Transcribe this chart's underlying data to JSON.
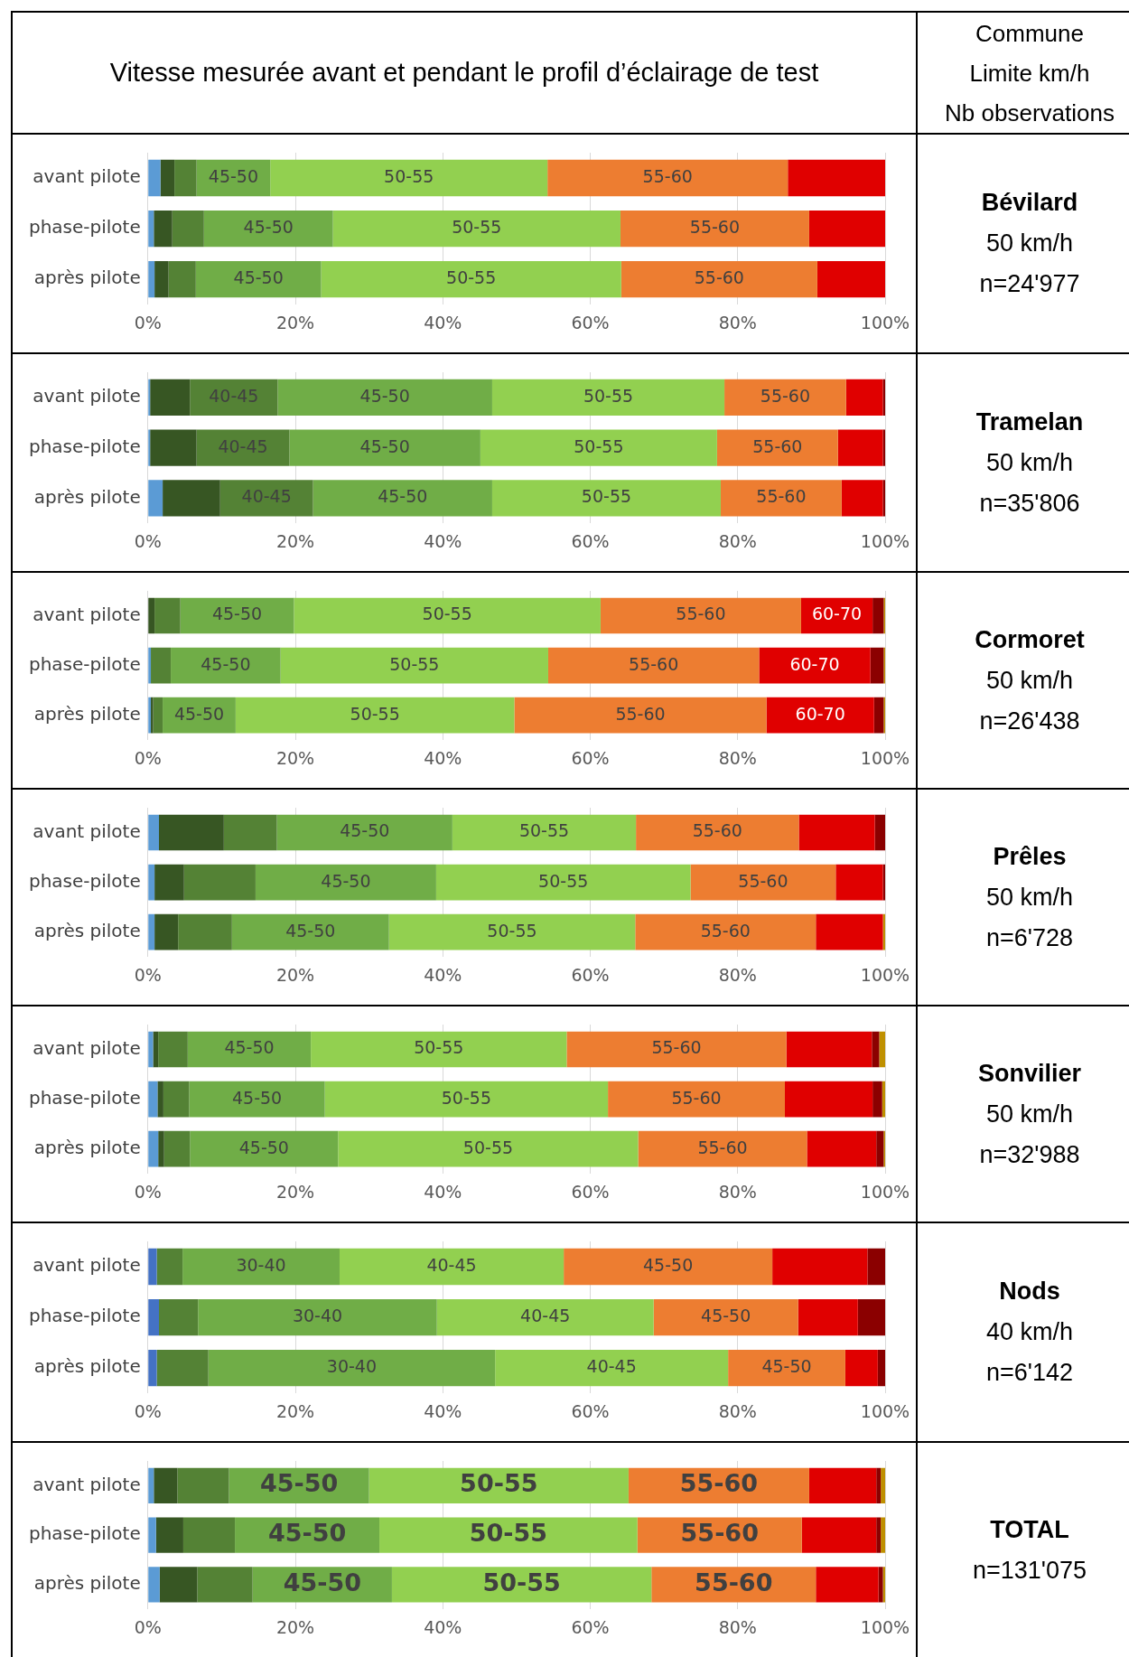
{
  "chart_data": [
    {
      "type": "other",
      "title": "Vitesse mesurée avant et pendant le profil d’éclairage de test",
      "annotations": [
        "Commune",
        "Limite km/h",
        "Nb observations"
      ]
    },
    {
      "type": "bar",
      "orientation": "horizontal",
      "stacked": true,
      "grid": "x",
      "annotations": [
        "Bévilard",
        "50 km/h",
        "n=24'977"
      ],
      "categories": [
        "avant pilote",
        "phase-pilote",
        "après pilote"
      ],
      "xlim": [
        0,
        100
      ],
      "xticks": [
        {
          "value": 0,
          "label": "0%"
        },
        {
          "value": 20,
          "label": "20%"
        },
        {
          "value": 40,
          "label": "40%"
        },
        {
          "value": 60,
          "label": "60%"
        },
        {
          "value": 80,
          "label": "80%"
        },
        {
          "value": 100,
          "label": "100%"
        }
      ],
      "series": [
        {
          "color": "#5b9bd5",
          "values": [
            1.7,
            0.8,
            0.9
          ]
        },
        {
          "color": "#375623",
          "values": [
            1.9,
            2.5,
            1.9
          ]
        },
        {
          "color": "#548235",
          "values": [
            3.0,
            4.3,
            3.7
          ]
        },
        {
          "name": "45-50",
          "color": "#70ad47",
          "values": [
            10.0,
            17.5,
            17.0
          ]
        },
        {
          "name": "50-55",
          "color": "#92d050",
          "values": [
            37.6,
            39.0,
            40.7
          ]
        },
        {
          "name": "55-60",
          "color": "#ed7d31",
          "values": [
            32.6,
            25.6,
            26.6
          ]
        },
        {
          "color": "#e00000",
          "values": [
            13.2,
            10.3,
            9.2
          ]
        }
      ]
    },
    {
      "type": "bar",
      "orientation": "horizontal",
      "stacked": true,
      "grid": "x",
      "annotations": [
        "Tramelan",
        "50 km/h",
        "n=35'806"
      ],
      "categories": [
        "avant pilote",
        "phase-pilote",
        "après pilote"
      ],
      "xlim": [
        0,
        100
      ],
      "xticks": [
        {
          "value": 0,
          "label": "0%"
        },
        {
          "value": 20,
          "label": "20%"
        },
        {
          "value": 40,
          "label": "40%"
        },
        {
          "value": 60,
          "label": "60%"
        },
        {
          "value": 80,
          "label": "80%"
        },
        {
          "value": 100,
          "label": "100%"
        }
      ],
      "series": [
        {
          "color": "#5b9bd5",
          "values": [
            0.3,
            0.3,
            2.0
          ]
        },
        {
          "color": "#375623",
          "values": [
            5.4,
            6.3,
            7.8
          ]
        },
        {
          "name": "40-45",
          "color": "#548235",
          "values": [
            11.9,
            12.6,
            12.6
          ]
        },
        {
          "name": "45-50",
          "color": "#70ad47",
          "values": [
            29.1,
            25.9,
            24.3
          ]
        },
        {
          "name": "50-55",
          "color": "#92d050",
          "values": [
            31.5,
            32.1,
            31.0
          ]
        },
        {
          "name": "55-60",
          "color": "#ed7d31",
          "values": [
            16.5,
            16.4,
            16.4
          ]
        },
        {
          "color": "#e00000",
          "values": [
            5.0,
            6.1,
            5.6
          ]
        },
        {
          "color": "#8b0000",
          "values": [
            0.3,
            0.3,
            0.3
          ]
        }
      ]
    },
    {
      "type": "bar",
      "orientation": "horizontal",
      "stacked": true,
      "grid": "x",
      "annotations": [
        "Cormoret",
        "50 km/h",
        "n=26'438"
      ],
      "categories": [
        "avant pilote",
        "phase-pilote",
        "après pilote"
      ],
      "xlim": [
        0,
        100
      ],
      "xticks": [
        {
          "value": 0,
          "label": "0%"
        },
        {
          "value": 20,
          "label": "20%"
        },
        {
          "value": 40,
          "label": "40%"
        },
        {
          "value": 60,
          "label": "60%"
        },
        {
          "value": 80,
          "label": "80%"
        },
        {
          "value": 100,
          "label": "100%"
        }
      ],
      "series": [
        {
          "color": "#5b9bd5",
          "values": [
            0,
            0.4,
            0.4
          ]
        },
        {
          "color": "#375623",
          "values": [
            0.9,
            0,
            0.3
          ]
        },
        {
          "color": "#548235",
          "values": [
            3.5,
            2.7,
            1.3
          ]
        },
        {
          "name": "45-50",
          "color": "#70ad47",
          "values": [
            15.4,
            14.9,
            9.9
          ]
        },
        {
          "name": "50-55",
          "color": "#92d050",
          "values": [
            41.6,
            36.3,
            37.8
          ]
        },
        {
          "name": "55-60",
          "color": "#ed7d31",
          "values": [
            27.2,
            28.6,
            34.2
          ]
        },
        {
          "name": "60-70",
          "color": "#e00000",
          "values": [
            9.7,
            15.1,
            14.6
          ]
        },
        {
          "color": "#8b0000",
          "values": [
            1.5,
            1.8,
            1.3
          ]
        },
        {
          "color": "#bf9000",
          "values": [
            0.2,
            0.2,
            0.2
          ]
        }
      ]
    },
    {
      "type": "bar",
      "orientation": "horizontal",
      "stacked": true,
      "grid": "x",
      "annotations": [
        "Prêles",
        "50 km/h",
        "n=6'728"
      ],
      "categories": [
        "avant pilote",
        "phase-pilote",
        "après pilote"
      ],
      "xlim": [
        0,
        100
      ],
      "xticks": [
        {
          "value": 0,
          "label": "0%"
        },
        {
          "value": 20,
          "label": "20%"
        },
        {
          "value": 40,
          "label": "40%"
        },
        {
          "value": 60,
          "label": "60%"
        },
        {
          "value": 80,
          "label": "80%"
        },
        {
          "value": 100,
          "label": "100%"
        }
      ],
      "series": [
        {
          "color": "#5b9bd5",
          "values": [
            1.5,
            0.9,
            0.9
          ]
        },
        {
          "color": "#375623",
          "values": [
            8.8,
            4.0,
            3.2
          ]
        },
        {
          "color": "#548235",
          "values": [
            7.2,
            9.7,
            7.3
          ]
        },
        {
          "name": "45-50",
          "color": "#70ad47",
          "values": [
            23.8,
            24.5,
            21.3
          ]
        },
        {
          "name": "50-55",
          "color": "#92d050",
          "values": [
            24.9,
            34.5,
            33.4
          ]
        },
        {
          "name": "55-60",
          "color": "#ed7d31",
          "values": [
            22.1,
            19.7,
            24.5
          ]
        },
        {
          "color": "#e00000",
          "values": [
            10.3,
            6.4,
            9.1
          ]
        },
        {
          "color": "#8b0000",
          "values": [
            1.4,
            0.3,
            0
          ]
        },
        {
          "color": "#bf9000",
          "values": [
            0,
            0,
            0.3
          ]
        }
      ]
    },
    {
      "type": "bar",
      "orientation": "horizontal",
      "stacked": true,
      "grid": "x",
      "annotations": [
        "Sonvilier",
        "50 km/h",
        "n=32'988"
      ],
      "categories": [
        "avant pilote",
        "phase-pilote",
        "après pilote"
      ],
      "xlim": [
        0,
        100
      ],
      "xticks": [
        {
          "value": 0,
          "label": "0%"
        },
        {
          "value": 20,
          "label": "20%"
        },
        {
          "value": 40,
          "label": "40%"
        },
        {
          "value": 60,
          "label": "60%"
        },
        {
          "value": 80,
          "label": "80%"
        },
        {
          "value": 100,
          "label": "100%"
        }
      ],
      "series": [
        {
          "color": "#5b9bd5",
          "values": [
            0.7,
            1.3,
            1.4
          ]
        },
        {
          "color": "#375623",
          "values": [
            0.7,
            0.8,
            0.8
          ]
        },
        {
          "color": "#548235",
          "values": [
            4.0,
            3.5,
            3.5
          ]
        },
        {
          "name": "45-50",
          "color": "#70ad47",
          "values": [
            16.7,
            18.4,
            20.1
          ]
        },
        {
          "name": "50-55",
          "color": "#92d050",
          "values": [
            34.7,
            38.4,
            40.7
          ]
        },
        {
          "name": "55-60",
          "color": "#ed7d31",
          "values": [
            29.8,
            24.0,
            22.9
          ]
        },
        {
          "color": "#e00000",
          "values": [
            11.6,
            11.9,
            9.4
          ]
        },
        {
          "color": "#8b0000",
          "values": [
            1.0,
            1.3,
            1.0
          ]
        },
        {
          "color": "#bf9000",
          "values": [
            0.8,
            0.4,
            0.2
          ]
        }
      ]
    },
    {
      "type": "bar",
      "orientation": "horizontal",
      "stacked": true,
      "grid": "x",
      "annotations": [
        "Nods",
        "40 km/h",
        "n=6'142"
      ],
      "categories": [
        "avant pilote",
        "phase-pilote",
        "après pilote"
      ],
      "xlim": [
        0,
        100
      ],
      "xticks": [
        {
          "value": 0,
          "label": "0%"
        },
        {
          "value": 20,
          "label": "20%"
        },
        {
          "value": 40,
          "label": "40%"
        },
        {
          "value": 60,
          "label": "60%"
        },
        {
          "value": 80,
          "label": "80%"
        },
        {
          "value": 100,
          "label": "100%"
        }
      ],
      "series": [
        {
          "color": "#4472c4",
          "values": [
            1.2,
            1.5,
            1.2
          ]
        },
        {
          "color": "#548235",
          "values": [
            3.5,
            5.3,
            7.0
          ]
        },
        {
          "name": "30-40",
          "color": "#70ad47",
          "values": [
            21.3,
            32.4,
            38.9
          ]
        },
        {
          "name": "40-45",
          "color": "#92d050",
          "values": [
            30.4,
            29.4,
            31.6
          ]
        },
        {
          "name": "45-50",
          "color": "#ed7d31",
          "values": [
            28.3,
            19.6,
            15.9
          ]
        },
        {
          "color": "#e00000",
          "values": [
            12.9,
            8.1,
            4.4
          ]
        },
        {
          "color": "#8b0000",
          "values": [
            2.4,
            3.7,
            1.0
          ]
        }
      ]
    },
    {
      "type": "bar",
      "orientation": "horizontal",
      "stacked": true,
      "grid": "x",
      "annotations": [
        "TOTAL",
        "n=131'075"
      ],
      "categories": [
        "avant pilote",
        "phase-pilote",
        "après pilote"
      ],
      "xlim": [
        0,
        100
      ],
      "xticks": [
        {
          "value": 0,
          "label": "0%"
        },
        {
          "value": 20,
          "label": "20%"
        },
        {
          "value": 40,
          "label": "40%"
        },
        {
          "value": 60,
          "label": "60%"
        },
        {
          "value": 80,
          "label": "80%"
        },
        {
          "value": 100,
          "label": "100%"
        }
      ],
      "series": [
        {
          "color": "#5b9bd5",
          "values": [
            0.8,
            1.1,
            1.6
          ]
        },
        {
          "color": "#375623",
          "values": [
            3.2,
            3.7,
            5.1
          ]
        },
        {
          "color": "#548235",
          "values": [
            7.0,
            7.0,
            7.5
          ]
        },
        {
          "name": "45-50",
          "color": "#70ad47",
          "values": [
            19.0,
            19.6,
            18.9
          ]
        },
        {
          "name": "50-55",
          "color": "#92d050",
          "values": [
            35.2,
            35.0,
            35.2
          ]
        },
        {
          "name": "55-60",
          "color": "#ed7d31",
          "values": [
            24.5,
            22.3,
            22.3
          ]
        },
        {
          "color": "#e00000",
          "values": [
            9.1,
            10.1,
            8.5
          ]
        },
        {
          "color": "#8b0000",
          "values": [
            0.6,
            0.6,
            0.6
          ]
        },
        {
          "color": "#bf9000",
          "values": [
            0.6,
            0.6,
            0.3
          ]
        }
      ]
    }
  ]
}
